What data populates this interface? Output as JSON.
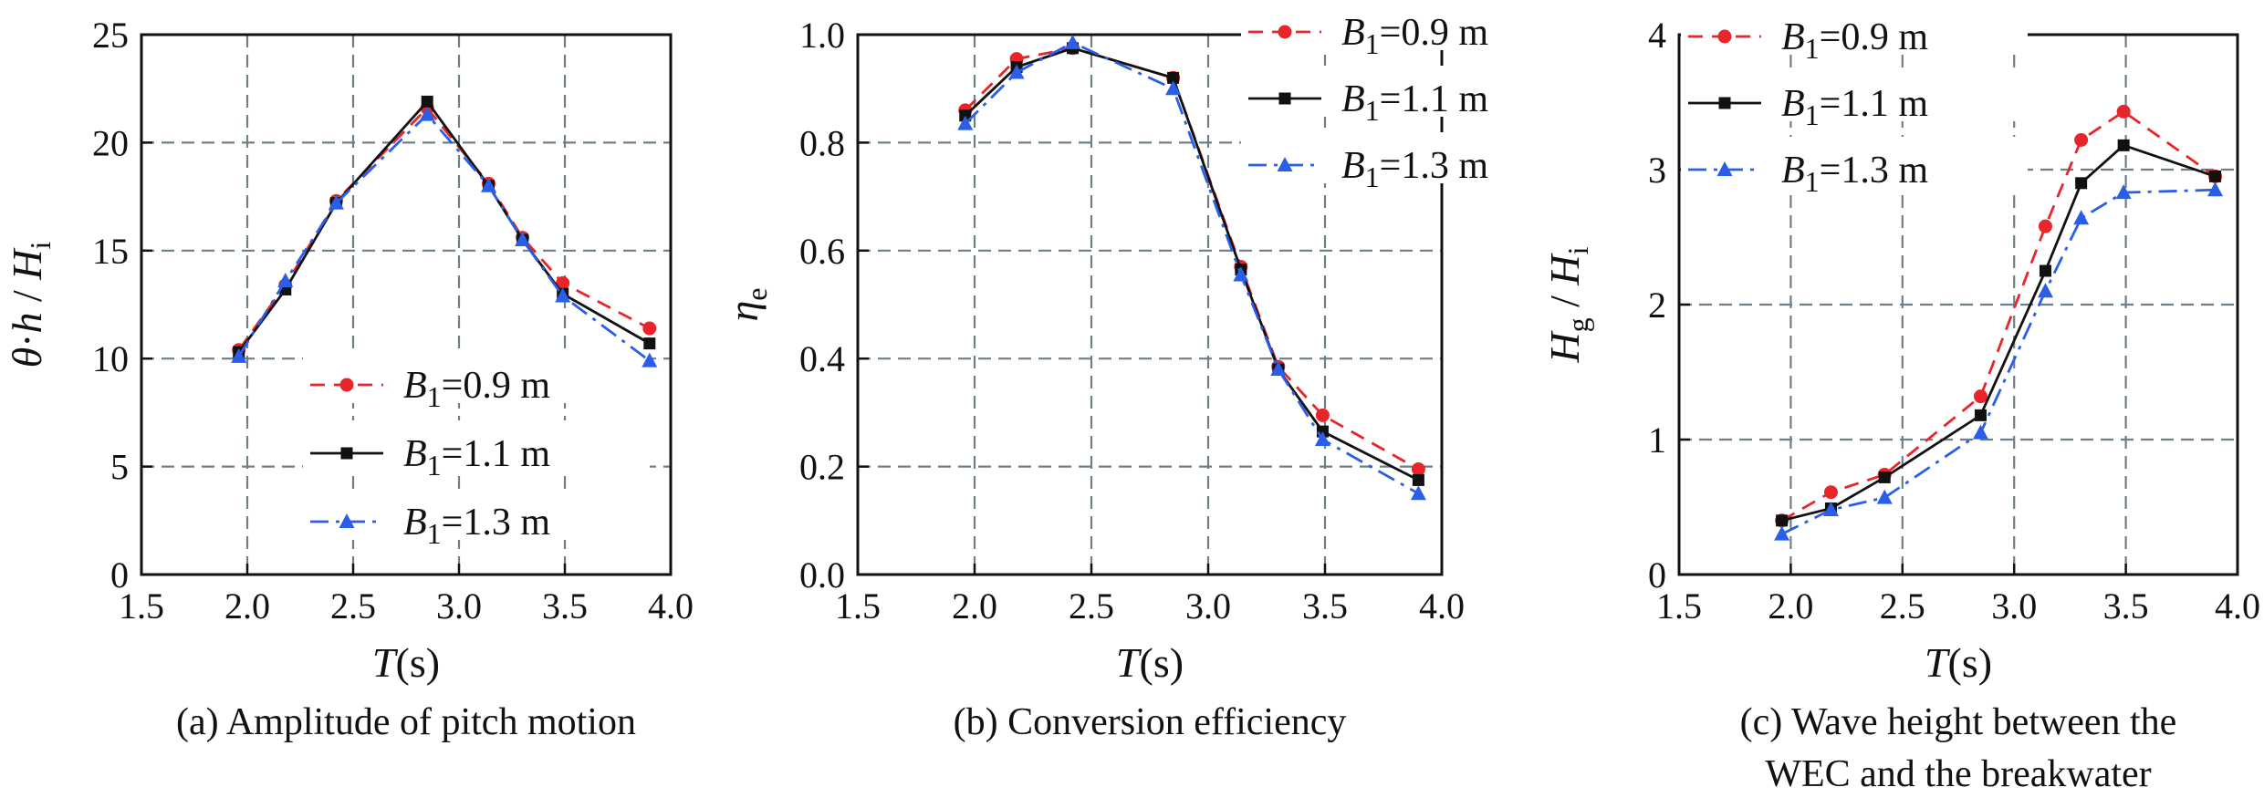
{
  "colors": {
    "B1_0.9": "#e8262a",
    "B1_1.1": "#111111",
    "B1_1.3": "#2a5ee8",
    "grid": "#6f7f88"
  },
  "chart_data": [
    {
      "type": "line",
      "caption": "(a) Amplitude of pitch motion",
      "xlabel": "T(s)",
      "ylabel": "θ·h / Hi",
      "xlim": [
        1.5,
        4.0
      ],
      "ylim": [
        0,
        25
      ],
      "xticks": [
        1.5,
        2.0,
        2.5,
        3.0,
        3.5,
        4.0
      ],
      "yticks": [
        0,
        5,
        10,
        15,
        20,
        25
      ],
      "xticklabels": [
        "1.5",
        "2.0",
        "2.5",
        "3.0",
        "3.5",
        "4.0"
      ],
      "yticklabels": [
        "0",
        "5",
        "10",
        "15",
        "20",
        "25"
      ],
      "grid": true,
      "legend_position": "bottom-center",
      "x": [
        1.96,
        2.18,
        2.42,
        2.85,
        3.14,
        3.3,
        3.49,
        3.9
      ],
      "series": [
        {
          "name": "B1=0.9 m",
          "legend_sub": "1",
          "legend_rest": "=0.9 m",
          "style": "dashed",
          "marker": "circle",
          "color_key": "B1_0.9",
          "values": [
            10.4,
            13.4,
            17.3,
            21.6,
            18.1,
            15.6,
            13.5,
            11.4
          ]
        },
        {
          "name": "B1=1.1 m",
          "legend_sub": "1",
          "legend_rest": "=1.1 m",
          "style": "solid",
          "marker": "square",
          "color_key": "B1_1.1",
          "values": [
            10.3,
            13.2,
            17.2,
            21.9,
            18.0,
            15.5,
            13.0,
            10.7
          ]
        },
        {
          "name": "B1=1.3 m",
          "legend_sub": "1",
          "legend_rest": "=1.3 m",
          "style": "dashdot",
          "marker": "triangle",
          "color_key": "B1_1.3",
          "values": [
            10.1,
            13.6,
            17.2,
            21.3,
            18.0,
            15.5,
            12.9,
            9.9
          ]
        }
      ]
    },
    {
      "type": "line",
      "caption": "(b) Conversion efficiency",
      "xlabel": "T(s)",
      "ylabel": "ηe",
      "xlim": [
        1.5,
        4.0
      ],
      "ylim": [
        0,
        1.0
      ],
      "xticks": [
        1.5,
        2.0,
        2.5,
        3.0,
        3.5,
        4.0
      ],
      "yticks": [
        0,
        0.2,
        0.4,
        0.6,
        0.8,
        1.0
      ],
      "xticklabels": [
        "1.5",
        "2.0",
        "2.5",
        "3.0",
        "3.5",
        "4.0"
      ],
      "yticklabels": [
        "0.0",
        "0.2",
        "0.4",
        "0.6",
        "0.8",
        "1.0"
      ],
      "grid": true,
      "legend_position": "top-right",
      "x": [
        1.96,
        2.18,
        2.42,
        2.85,
        3.14,
        3.3,
        3.49,
        3.9
      ],
      "series": [
        {
          "name": "B1=0.9 m",
          "legend_sub": "1",
          "legend_rest": "=0.9 m",
          "style": "dashed",
          "marker": "circle",
          "color_key": "B1_0.9",
          "values": [
            0.86,
            0.955,
            0.975,
            0.92,
            0.57,
            0.385,
            0.295,
            0.195
          ]
        },
        {
          "name": "B1=1.1 m",
          "legend_sub": "1",
          "legend_rest": "=1.1 m",
          "style": "solid",
          "marker": "square",
          "color_key": "B1_1.1",
          "values": [
            0.85,
            0.94,
            0.975,
            0.92,
            0.565,
            0.38,
            0.265,
            0.175
          ]
        },
        {
          "name": "B1=1.3 m",
          "legend_sub": "1",
          "legend_rest": "=1.3 m",
          "style": "dashdot",
          "marker": "triangle",
          "color_key": "B1_1.3",
          "values": [
            0.835,
            0.93,
            0.985,
            0.9,
            0.555,
            0.38,
            0.25,
            0.15
          ]
        }
      ]
    },
    {
      "type": "line",
      "caption": "(c) Wave height between the WEC and the breakwater",
      "caption_lines": [
        "(c) Wave height between the",
        "WEC and the breakwater"
      ],
      "xlabel": "T(s)",
      "ylabel": "Hg / Hi",
      "xlim": [
        1.5,
        4.0
      ],
      "ylim": [
        0,
        4
      ],
      "xticks": [
        1.5,
        2.0,
        2.5,
        3.0,
        3.5,
        4.0
      ],
      "yticks": [
        0,
        1,
        2,
        3,
        4
      ],
      "xticklabels": [
        "1.5",
        "2.0",
        "2.5",
        "3.0",
        "3.5",
        "4.0"
      ],
      "yticklabels": [
        "0",
        "1",
        "2",
        "3",
        "4"
      ],
      "grid": true,
      "legend_position": "top-left",
      "x": [
        1.96,
        2.18,
        2.42,
        2.85,
        3.14,
        3.3,
        3.49,
        3.9
      ],
      "series": [
        {
          "name": "B1=0.9 m",
          "legend_sub": "1",
          "legend_rest": "=0.9 m",
          "style": "dashed",
          "marker": "circle",
          "color_key": "B1_0.9",
          "values": [
            0.4,
            0.61,
            0.74,
            1.32,
            2.58,
            3.22,
            3.43,
            2.95
          ]
        },
        {
          "name": "B1=1.1 m",
          "legend_sub": "1",
          "legend_rest": "=1.1 m",
          "style": "solid",
          "marker": "square",
          "color_key": "B1_1.1",
          "values": [
            0.4,
            0.49,
            0.72,
            1.18,
            2.25,
            2.9,
            3.18,
            2.95
          ]
        },
        {
          "name": "B1=1.3 m",
          "legend_sub": "1",
          "legend_rest": "=1.3 m",
          "style": "dashdot",
          "marker": "triangle",
          "color_key": "B1_1.3",
          "values": [
            0.3,
            0.48,
            0.57,
            1.05,
            2.1,
            2.64,
            2.83,
            2.85
          ]
        }
      ]
    }
  ]
}
